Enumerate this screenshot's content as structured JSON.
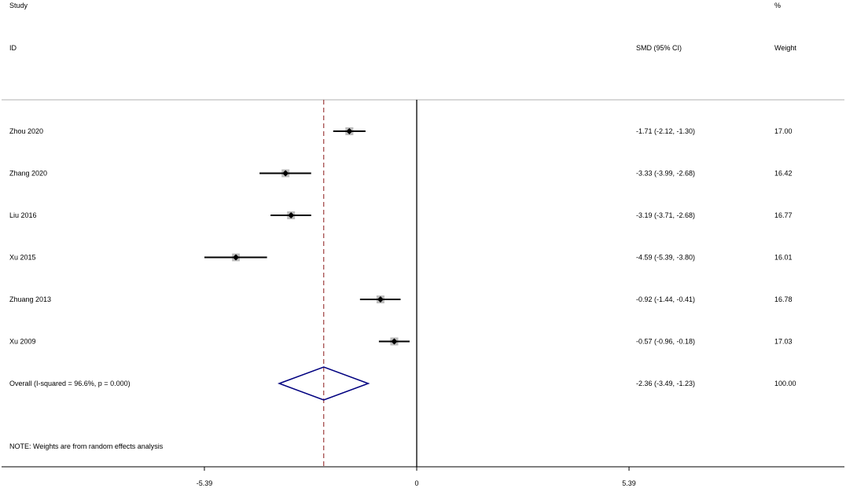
{
  "chart_data": {
    "type": "forest",
    "header": {
      "study_line1": "Study",
      "study_line2": "ID",
      "effect_label": "SMD (95% CI)",
      "weight_line1": "%",
      "weight_line2": "Weight"
    },
    "studies": [
      {
        "id": "Zhou 2020",
        "smd": -1.71,
        "lower": -2.12,
        "upper": -1.3,
        "ci_text": "-1.71 (-2.12, -1.30)",
        "weight": 17.0,
        "weight_text": "17.00"
      },
      {
        "id": "Zhang 2020",
        "smd": -3.33,
        "lower": -3.99,
        "upper": -2.68,
        "ci_text": "-3.33 (-3.99, -2.68)",
        "weight": 16.42,
        "weight_text": "16.42"
      },
      {
        "id": "Liu 2016",
        "smd": -3.19,
        "lower": -3.71,
        "upper": -2.68,
        "ci_text": "-3.19 (-3.71, -2.68)",
        "weight": 16.77,
        "weight_text": "16.77"
      },
      {
        "id": "Xu 2015",
        "smd": -4.59,
        "lower": -5.39,
        "upper": -3.8,
        "ci_text": "-4.59 (-5.39, -3.80)",
        "weight": 16.01,
        "weight_text": "16.01"
      },
      {
        "id": "Zhuang 2013",
        "smd": -0.92,
        "lower": -1.44,
        "upper": -0.41,
        "ci_text": "-0.92 (-1.44, -0.41)",
        "weight": 16.78,
        "weight_text": "16.78"
      },
      {
        "id": "Xu 2009",
        "smd": -0.57,
        "lower": -0.96,
        "upper": -0.18,
        "ci_text": "-0.57 (-0.96, -0.18)",
        "weight": 17.03,
        "weight_text": "17.03"
      }
    ],
    "overall": {
      "label": "Overall  (I-squared = 96.6%, p = 0.000)",
      "smd": -2.36,
      "lower": -3.49,
      "upper": -1.23,
      "ci_text": "-2.36 (-3.49, -1.23)",
      "weight_text": "100.00"
    },
    "note": "NOTE: Weights are from random effects analysis",
    "x_ticks": [
      {
        "value": -5.39,
        "label": "-5.39"
      },
      {
        "value": 0,
        "label": "0"
      },
      {
        "value": 5.39,
        "label": "5.39"
      }
    ],
    "xlim": [
      -5.39,
      5.39
    ],
    "colors": {
      "ci_line": "#000000",
      "point": "#000000",
      "weight_box": "#bdbdbd",
      "null_line": "#000000",
      "overall_line": "#8b1a1a",
      "overall_diamond": "#000080",
      "separator": "#b0b0b0"
    }
  }
}
